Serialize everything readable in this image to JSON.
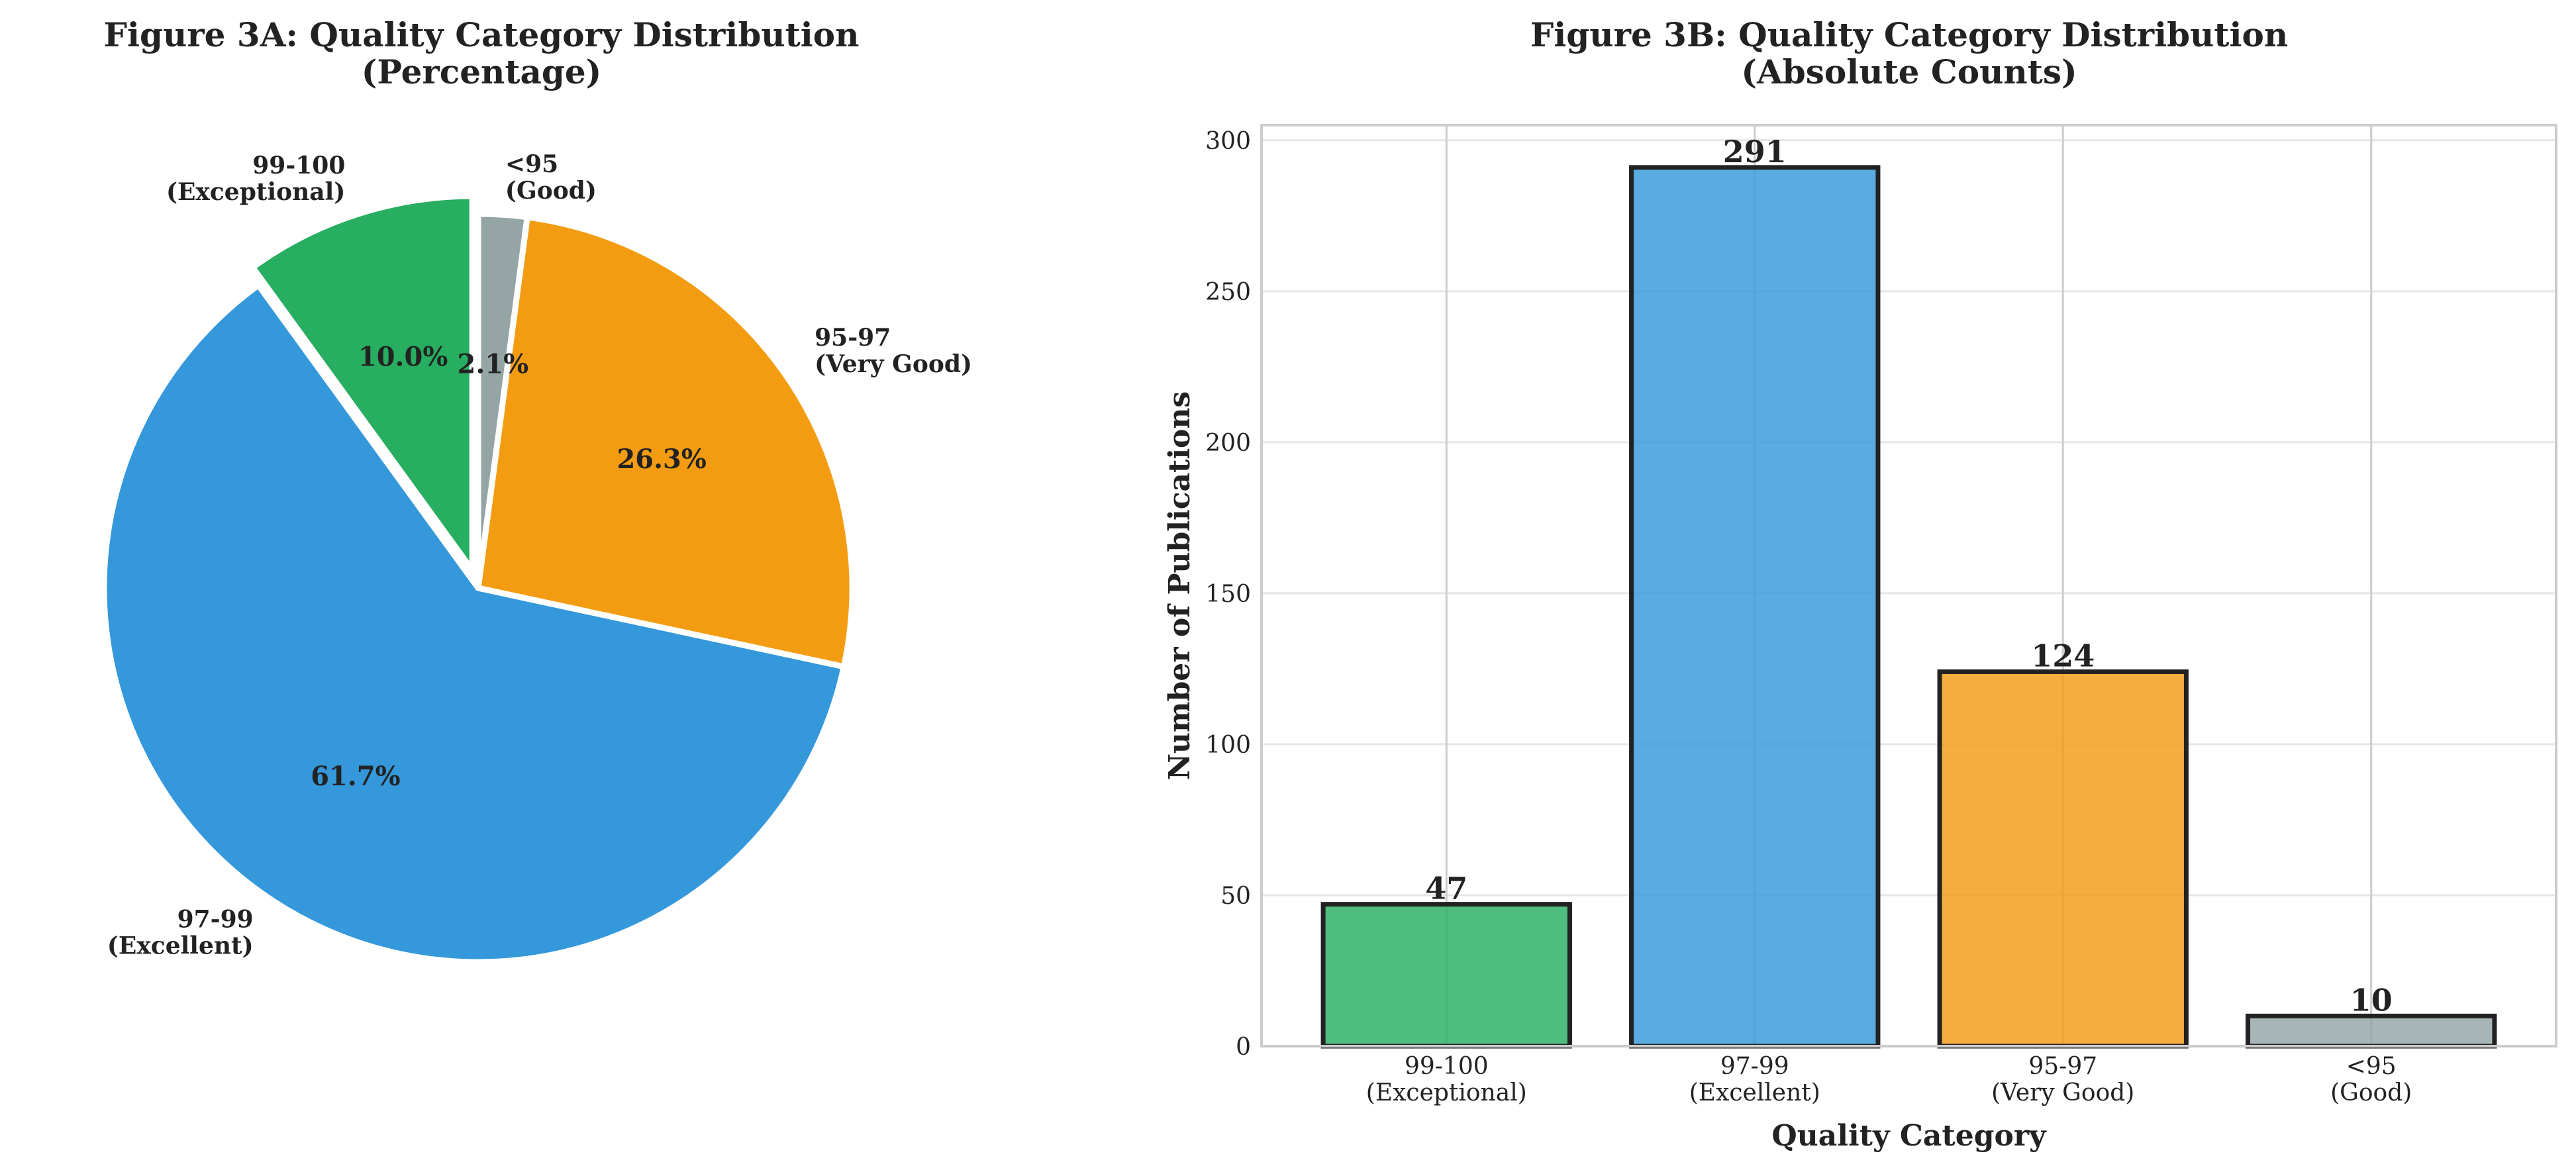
{
  "chart_data": [
    {
      "type": "pie",
      "title": "Figure 3A: Quality Category Distribution\n(Percentage)",
      "labels": [
        "99-100\n(Exceptional)",
        "97-99\n(Excellent)",
        "95-97\n(Very Good)",
        "<95\n(Good)"
      ],
      "values": [
        10.0,
        61.7,
        26.3,
        2.1
      ],
      "value_labels": [
        "10.0%",
        "61.7%",
        "26.3%",
        "2.1%"
      ],
      "colors": [
        "#27ae60",
        "#3498db",
        "#f39c12",
        "#95a5a6"
      ],
      "start_angle": 90,
      "direction": "counterclockwise",
      "exploded": [
        "99-100\n(Exceptional)"
      ]
    },
    {
      "type": "bar",
      "title": "Figure 3B: Quality Category Distribution\n(Absolute Counts)",
      "categories": [
        "99-100\n(Exceptional)",
        "97-99\n(Excellent)",
        "95-97\n(Very Good)",
        "<95\n(Good)"
      ],
      "values": [
        47,
        291,
        124,
        10
      ],
      "colors": [
        "#27ae60",
        "#3498db",
        "#f39c12",
        "#95a5a6"
      ],
      "edge_color": "#222222",
      "xlabel": "Quality Category",
      "ylabel": "Number of Publications",
      "ylim": [
        0,
        305
      ],
      "yticks": [
        0,
        50,
        100,
        150,
        200,
        250,
        300
      ],
      "grid": true
    }
  ]
}
